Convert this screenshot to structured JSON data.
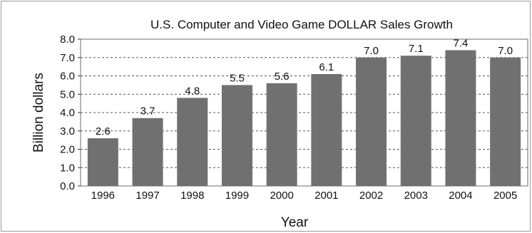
{
  "chart_data": {
    "type": "bar",
    "title": "U.S. Computer and Video Game DOLLAR Sales Growth",
    "xlabel": "Year",
    "ylabel": "Billion dollars",
    "categories": [
      "1996",
      "1997",
      "1998",
      "1999",
      "2000",
      "2001",
      "2002",
      "2003",
      "2004",
      "2005"
    ],
    "values": [
      2.6,
      3.7,
      4.8,
      5.5,
      5.6,
      6.1,
      7.0,
      7.1,
      7.4,
      7.0
    ],
    "value_labels": [
      "2.6",
      "3.7",
      "4.8",
      "5.5",
      "5.6",
      "6.1",
      "7.0",
      "7.1",
      "7.4",
      "7.0"
    ],
    "ylim": [
      0,
      8
    ],
    "yticks": [
      "0.0",
      "1.0",
      "2.0",
      "3.0",
      "4.0",
      "5.0",
      "6.0",
      "7.0",
      "8.0"
    ],
    "grid": true,
    "colors": {
      "bar": "#707070",
      "grid": "#555555",
      "frame": "#9a9a9a"
    }
  }
}
